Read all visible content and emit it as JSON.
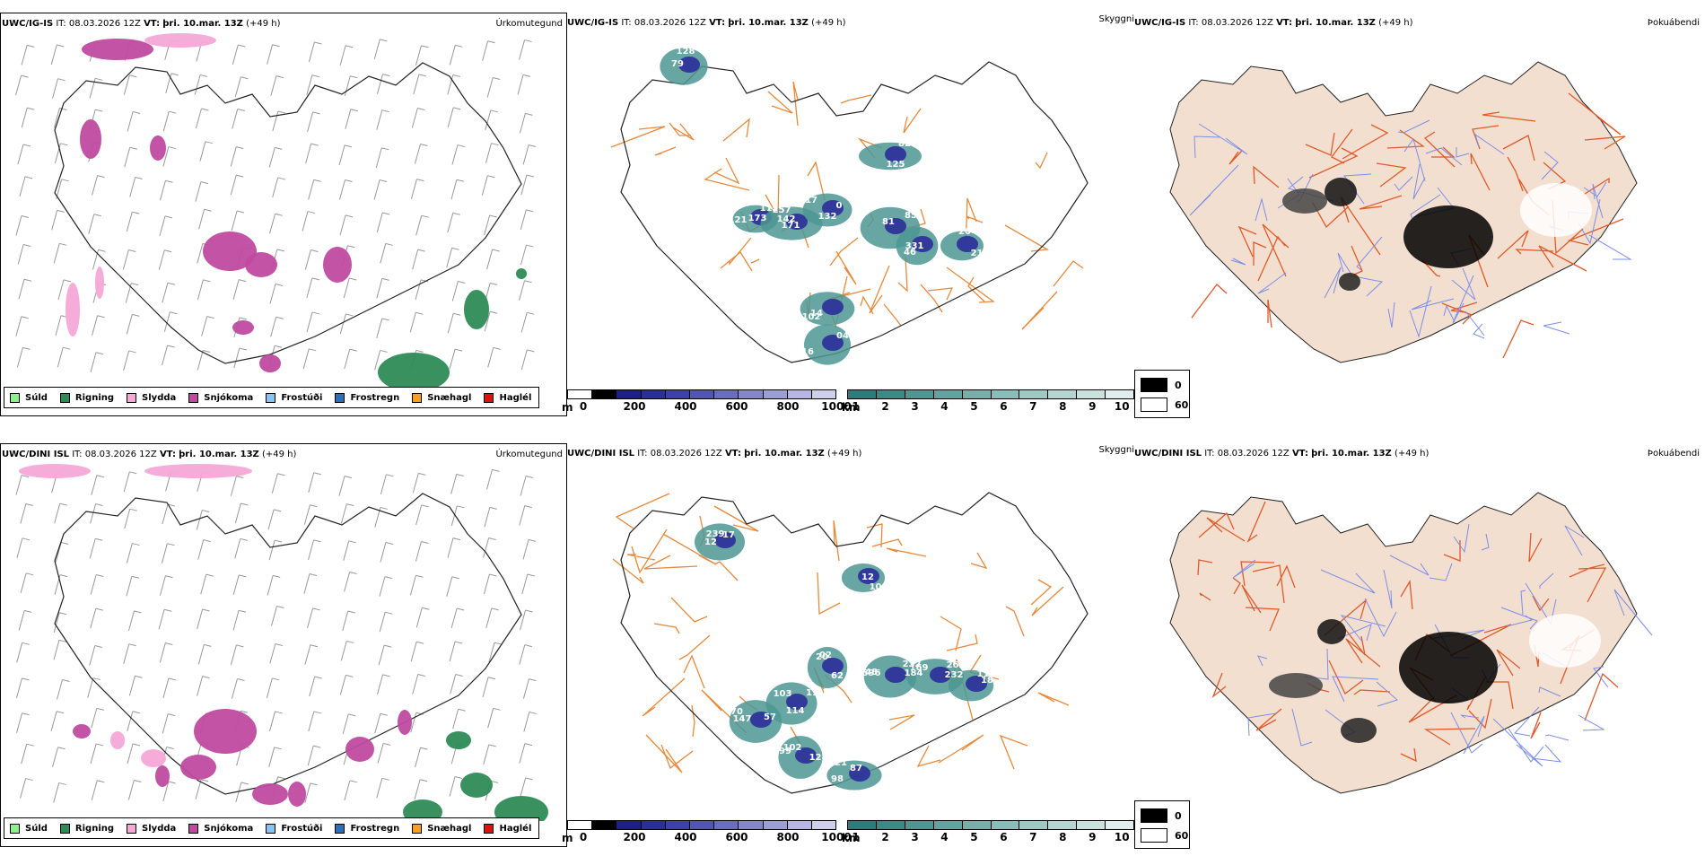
{
  "rows": [
    {
      "model": "UWC/IG-IS",
      "it_label": "IT:",
      "it_value": "08.03.2026 12Z",
      "vt_label": "VT:",
      "vt_value": "þri. 10.mar. 13Z",
      "lead": "(+49 h)",
      "panels": [
        "Úrkomutegund",
        "Skyggni",
        "Þokuábendi"
      ],
      "cloud_labels": [
        "112",
        "257",
        "17",
        "85",
        "46",
        "20",
        "102",
        "04",
        "128",
        "125",
        "121",
        "142",
        "0",
        "81",
        "331",
        "215",
        "14",
        "16",
        "79",
        "82",
        "173",
        "171",
        "132"
      ]
    },
    {
      "model": "UWC/DINI ISL",
      "it_label": "IT:",
      "it_value": "08.03.2026 12Z",
      "vt_label": "VT:",
      "vt_value": "þri. 10.mar. 13Z",
      "lead": "(+49 h)",
      "panels": [
        "Úrkomutegund",
        "Skyggni",
        "Þokuábendi"
      ],
      "cloud_labels": [
        "147",
        "11",
        "02",
        "48",
        "169",
        "18",
        "21",
        "102",
        "17",
        "108",
        "57",
        "103",
        "20",
        "232",
        "184",
        "232",
        "98",
        "99",
        "239",
        "12",
        "70",
        "114",
        "62",
        "596",
        "262",
        "112",
        "87",
        "128",
        "12"
      ]
    }
  ],
  "precip_legend": [
    {
      "label": "Súld",
      "color": "#90ee90"
    },
    {
      "label": "Rigning",
      "color": "#2e8b57"
    },
    {
      "label": "Slydda",
      "color": "#f4a8d6"
    },
    {
      "label": "Snjókoma",
      "color": "#c04aa0"
    },
    {
      "label": "Frostúði",
      "color": "#87c4f0"
    },
    {
      "label": "Frostregn",
      "color": "#2a6fb8"
    },
    {
      "label": "Snæhagl",
      "color": "#f5a01e"
    },
    {
      "label": "Haglél",
      "color": "#dd1111"
    }
  ],
  "ceiling_scale": {
    "unit": "m",
    "ticks": [
      "0",
      "200",
      "400",
      "600",
      "800",
      "1000"
    ],
    "colors": [
      "#ffffff",
      "#000000",
      "#1f1f8a",
      "#2b2f9a",
      "#3c40a8",
      "#5355b4",
      "#6a6cc0",
      "#8486cc",
      "#9c9ed8",
      "#b6b6e2",
      "#cfcfec"
    ]
  },
  "visibility_scale": {
    "unit": "km",
    "ticks": [
      "1",
      "2",
      "3",
      "4",
      "5",
      "6",
      "7",
      "8",
      "9",
      "10"
    ],
    "colors": [
      "#2a7d7a",
      "#3b8a86",
      "#4d9793",
      "#60a49f",
      "#74b1ab",
      "#89bdb7",
      "#9ec9c3",
      "#b4d6d0",
      "#cae2dd",
      "#e0eeeb"
    ]
  },
  "fog_legend": [
    {
      "value": "0",
      "color": "#000000"
    },
    {
      "value": "60",
      "color": "#ffffff"
    }
  ]
}
